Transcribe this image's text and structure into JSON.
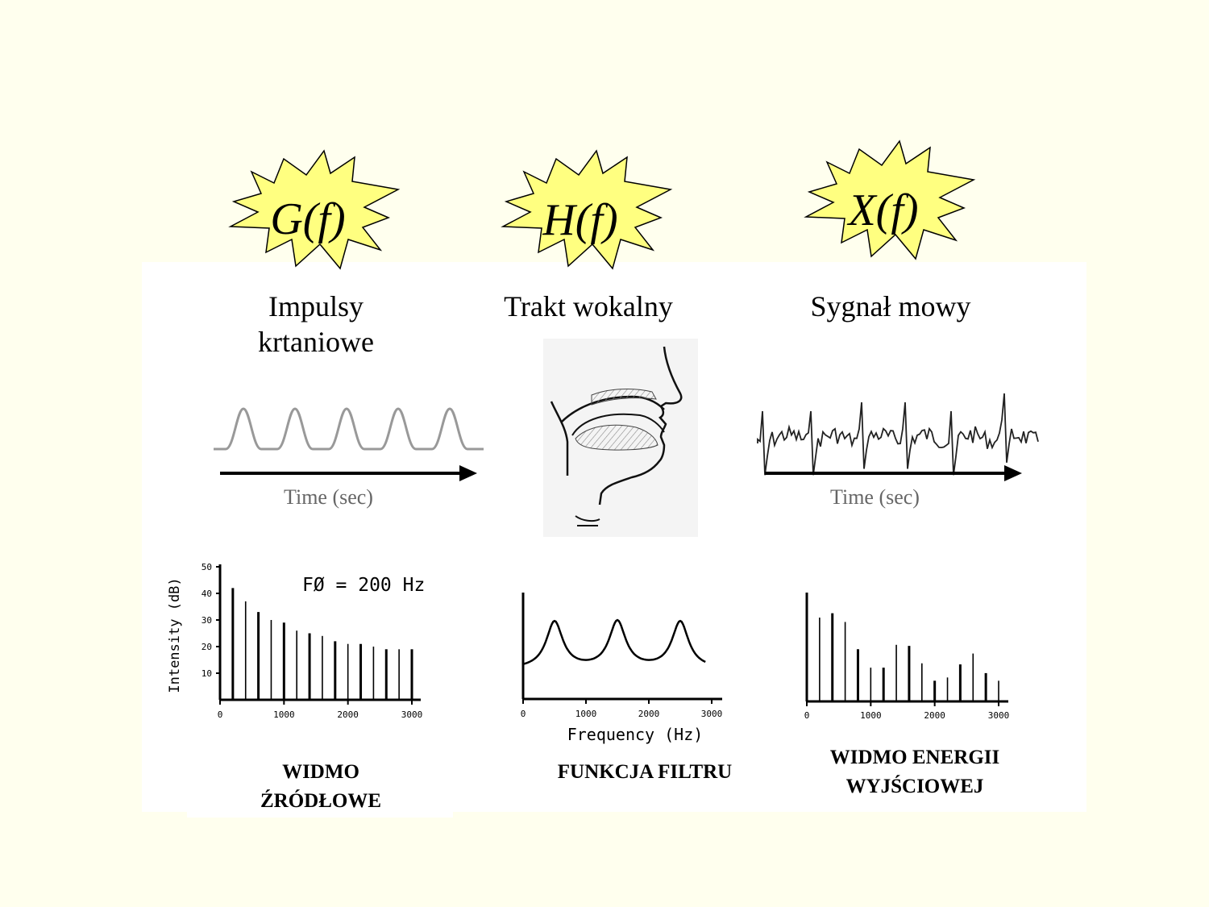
{
  "stages": [
    {
      "symbol": "G(f)",
      "title_lines": [
        "Impulsy",
        "krtaniowe"
      ],
      "caption_lines": [
        "WIDMO",
        "ŹRÓDŁOWE"
      ],
      "time_axis_label": "Time (sec)"
    },
    {
      "symbol": "H(f)",
      "title_lines": [
        "Trakt wokalny"
      ],
      "caption_lines": [
        "FUNKCJA FILTRU"
      ]
    },
    {
      "symbol": "X(f)",
      "title_lines": [
        "Sygnał mowy"
      ],
      "caption_lines": [
        "WIDMO ENERGII",
        "WYJŚCIOWEJ"
      ],
      "time_axis_label": "Time (sec)"
    }
  ],
  "colors": {
    "background": "#FFFFEE",
    "burst_fill": "#FFFF80",
    "panel": "#FFFFFF"
  },
  "source_spectrum": {
    "annotation": "FØ = 200 Hz",
    "ylabel": "Intensity (dB)",
    "yticks": [
      "50",
      "40",
      "30",
      "20",
      "10"
    ],
    "xticks": [
      "0",
      "1000",
      "2000",
      "3000"
    ]
  },
  "filter_function": {
    "xlabel": "Frequency (Hz)",
    "xticks": [
      "0",
      "1000",
      "2000",
      "3000"
    ]
  },
  "output_spectrum": {
    "xticks": [
      "0",
      "1000",
      "2000",
      "3000"
    ]
  },
  "chart_data": [
    {
      "type": "bar",
      "ylabel": "Intensity (dB)",
      "annotation": "FØ = 200 Hz",
      "xlim": [
        0,
        3000
      ],
      "ylim": [
        0,
        50
      ],
      "x": [
        200,
        400,
        600,
        800,
        1000,
        1200,
        1400,
        1600,
        1800,
        2000,
        2200,
        2400,
        2600,
        2800,
        3000
      ],
      "values": [
        42,
        37,
        33,
        30,
        29,
        26,
        25,
        24,
        22,
        21,
        21,
        20,
        19,
        19,
        19
      ]
    },
    {
      "type": "line",
      "xlabel": "Frequency (Hz)",
      "xlim": [
        0,
        3000
      ],
      "peaks_hz": [
        500,
        1500,
        2500
      ]
    },
    {
      "type": "bar",
      "xlim": [
        0,
        3000
      ],
      "x": [
        0,
        200,
        400,
        600,
        800,
        1000,
        1200,
        1400,
        1600,
        1800,
        2000,
        2200,
        2400,
        2600,
        2800,
        3000
      ],
      "values": [
        100,
        77,
        81,
        73,
        48,
        31,
        31,
        52,
        51,
        35,
        19,
        22,
        34,
        44,
        26,
        19
      ]
    }
  ]
}
